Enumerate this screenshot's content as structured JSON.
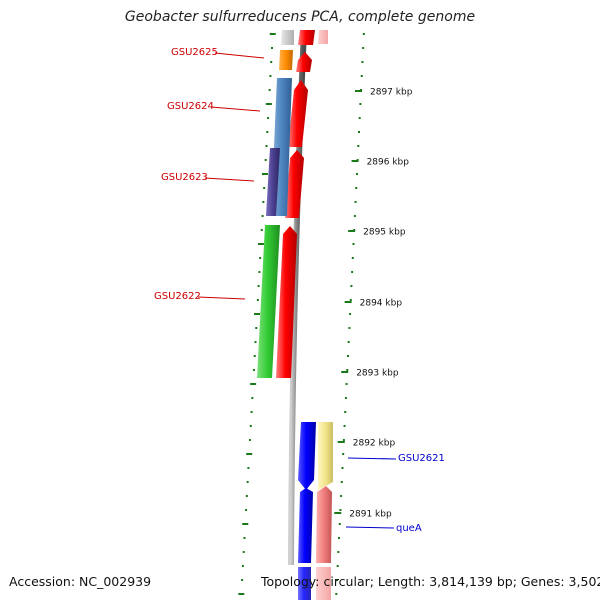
{
  "title": "Geobacter sulfurreducens PCA, complete genome",
  "footer": {
    "accession": "Accession: NC_002939",
    "summary": "Topology: circular; Length: 3,814,139 bp; Genes: 3,502"
  },
  "colors": {
    "forward_red": "#ff0000",
    "backbone": "#808080",
    "tick_green": "#1a7a1a",
    "label_red": "#cc0000",
    "label_blue": "#0000cc",
    "blue_gene": "#0000ff",
    "yellow_gene": "#f3e58c",
    "pink_gene": "#f07d7d"
  },
  "ticks": [
    {
      "label": "2897 kbp"
    },
    {
      "label": "2896 kbp"
    },
    {
      "label": "2895 kbp"
    },
    {
      "label": "2894 kbp"
    },
    {
      "label": "2893 kbp"
    },
    {
      "label": "2892 kbp"
    },
    {
      "label": "2891 kbp"
    }
  ],
  "genes_left": [
    {
      "label": "GSU2625",
      "color": "#ff8c00"
    },
    {
      "label": "GSU2624",
      "color": "#4f86c0"
    },
    {
      "label": "GSU2623",
      "color": "#4b3f8f"
    },
    {
      "label": "GSU2622",
      "color": "#33cc33"
    }
  ],
  "genes_right": [
    {
      "label": "GSU2621",
      "color": "#f3e58c"
    },
    {
      "label": "queA",
      "color": "#f07d7d"
    }
  ]
}
